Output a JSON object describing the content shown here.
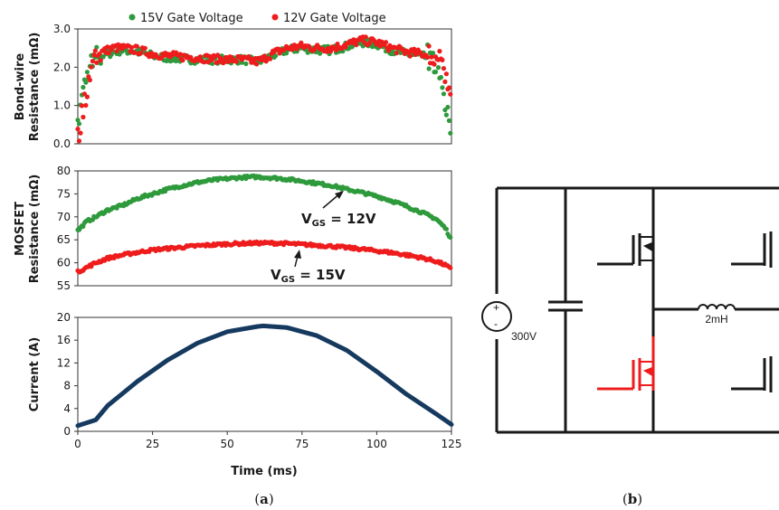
{
  "colors": {
    "green": "#2e9a3c",
    "red": "#ee1c1c",
    "navy": "#163a5f",
    "black": "#1a1a1a"
  },
  "legend": {
    "green_label": "15V Gate Voltage",
    "red_label": "12V Gate Voltage"
  },
  "panel_a_caption": "a",
  "panel_b_caption": "b",
  "annotations": {
    "upper": {
      "prefix": "V",
      "sub": "GS",
      "suffix": " = 12V"
    },
    "lower": {
      "prefix": "V",
      "sub": "GS",
      "suffix": " = 15V"
    }
  },
  "circuit": {
    "source_label": "300V",
    "inductor_label": "2mH",
    "source_plus": "+",
    "source_minus": "-"
  },
  "chart_data": [
    {
      "type": "scatter",
      "ylabel_lines": [
        "Bond-wire",
        "Resistance (mΩ)"
      ],
      "ylim": [
        0,
        3.0
      ],
      "yticks": [
        "0.0",
        "1.0",
        "2.0",
        "3.0"
      ],
      "xlim": [
        0,
        125
      ],
      "grid": false,
      "legend": "top",
      "series": [
        {
          "name": "15V Gate Voltage",
          "color": "green",
          "x": [
            0,
            2,
            4,
            6,
            8,
            10,
            12,
            15,
            20,
            25,
            30,
            40,
            50,
            55,
            60,
            62,
            65,
            70,
            75,
            80,
            85,
            90,
            95,
            100,
            105,
            110,
            115,
            118,
            120,
            122,
            123,
            124,
            125
          ],
          "y": [
            0.5,
            1.5,
            2.0,
            2.2,
            2.3,
            2.35,
            2.4,
            2.45,
            2.4,
            2.3,
            2.25,
            2.2,
            2.2,
            2.2,
            2.15,
            2.2,
            2.3,
            2.45,
            2.5,
            2.45,
            2.45,
            2.55,
            2.65,
            2.6,
            2.45,
            2.35,
            2.3,
            2.2,
            2.0,
            1.5,
            1.0,
            0.6,
            0.3
          ]
        },
        {
          "name": "12V Gate Voltage",
          "color": "red",
          "x": [
            0,
            2,
            4,
            6,
            8,
            10,
            12,
            15,
            20,
            25,
            30,
            40,
            50,
            55,
            60,
            62,
            65,
            70,
            75,
            80,
            85,
            90,
            95,
            100,
            105,
            110,
            115,
            118,
            120,
            122,
            123,
            124,
            125
          ],
          "y": [
            0.2,
            1.0,
            1.8,
            2.3,
            2.4,
            2.45,
            2.5,
            2.5,
            2.45,
            2.35,
            2.3,
            2.25,
            2.2,
            2.2,
            2.15,
            2.2,
            2.35,
            2.5,
            2.55,
            2.5,
            2.5,
            2.6,
            2.7,
            2.65,
            2.5,
            2.4,
            2.35,
            2.3,
            2.2,
            2.0,
            1.8,
            1.6,
            1.5
          ]
        }
      ]
    },
    {
      "type": "scatter",
      "ylabel_lines": [
        "MOSFET",
        "Resistance (mΩ)"
      ],
      "ylim": [
        55,
        80
      ],
      "yticks": [
        "55",
        "60",
        "65",
        "70",
        "75",
        "80"
      ],
      "xlim": [
        0,
        125
      ],
      "grid": false,
      "series": [
        {
          "name": "12V Gate Voltage",
          "color": "green",
          "x": [
            0,
            3,
            6,
            10,
            15,
            20,
            25,
            30,
            35,
            40,
            45,
            50,
            55,
            60,
            65,
            70,
            75,
            80,
            85,
            90,
            95,
            100,
            105,
            110,
            115,
            120,
            123,
            125
          ],
          "y": [
            67,
            69,
            70,
            71.5,
            72.5,
            74,
            75,
            76,
            76.8,
            77.5,
            78,
            78.3,
            78.6,
            78.7,
            78.5,
            78.2,
            77.8,
            77.3,
            76.8,
            76,
            75.3,
            74.5,
            73.5,
            72.3,
            71,
            69.5,
            67.5,
            65
          ]
        },
        {
          "name": "15V Gate Voltage",
          "color": "red",
          "x": [
            0,
            3,
            6,
            10,
            15,
            20,
            25,
            30,
            35,
            40,
            45,
            50,
            55,
            60,
            65,
            70,
            75,
            80,
            85,
            90,
            95,
            100,
            105,
            110,
            115,
            120,
            123,
            125
          ],
          "y": [
            58,
            59,
            60,
            61,
            61.7,
            62.3,
            62.8,
            63.1,
            63.4,
            63.7,
            63.9,
            64.1,
            64.2,
            64.3,
            64.3,
            64.2,
            64,
            63.8,
            63.6,
            63.3,
            63,
            62.6,
            62.2,
            61.7,
            61.1,
            60.3,
            59.5,
            58.5
          ]
        }
      ]
    },
    {
      "type": "line",
      "ylabel_lines": [
        "Current (A)"
      ],
      "xlabel": "Time (ms)",
      "ylim": [
        0,
        20
      ],
      "yticks": [
        "0",
        "4",
        "8",
        "12",
        "16",
        "20"
      ],
      "xlim": [
        0,
        125
      ],
      "xticks": [
        "0",
        "25",
        "50",
        "75",
        "100",
        "125"
      ],
      "grid": false,
      "series": [
        {
          "color": "navy",
          "x": [
            0,
            6,
            10,
            20,
            30,
            40,
            50,
            60,
            62,
            70,
            80,
            90,
            100,
            110,
            120,
            125
          ],
          "y": [
            1.0,
            2.0,
            4.5,
            8.8,
            12.5,
            15.5,
            17.5,
            18.4,
            18.5,
            18.2,
            16.8,
            14.2,
            10.5,
            6.5,
            3.0,
            1.2
          ]
        }
      ]
    }
  ]
}
